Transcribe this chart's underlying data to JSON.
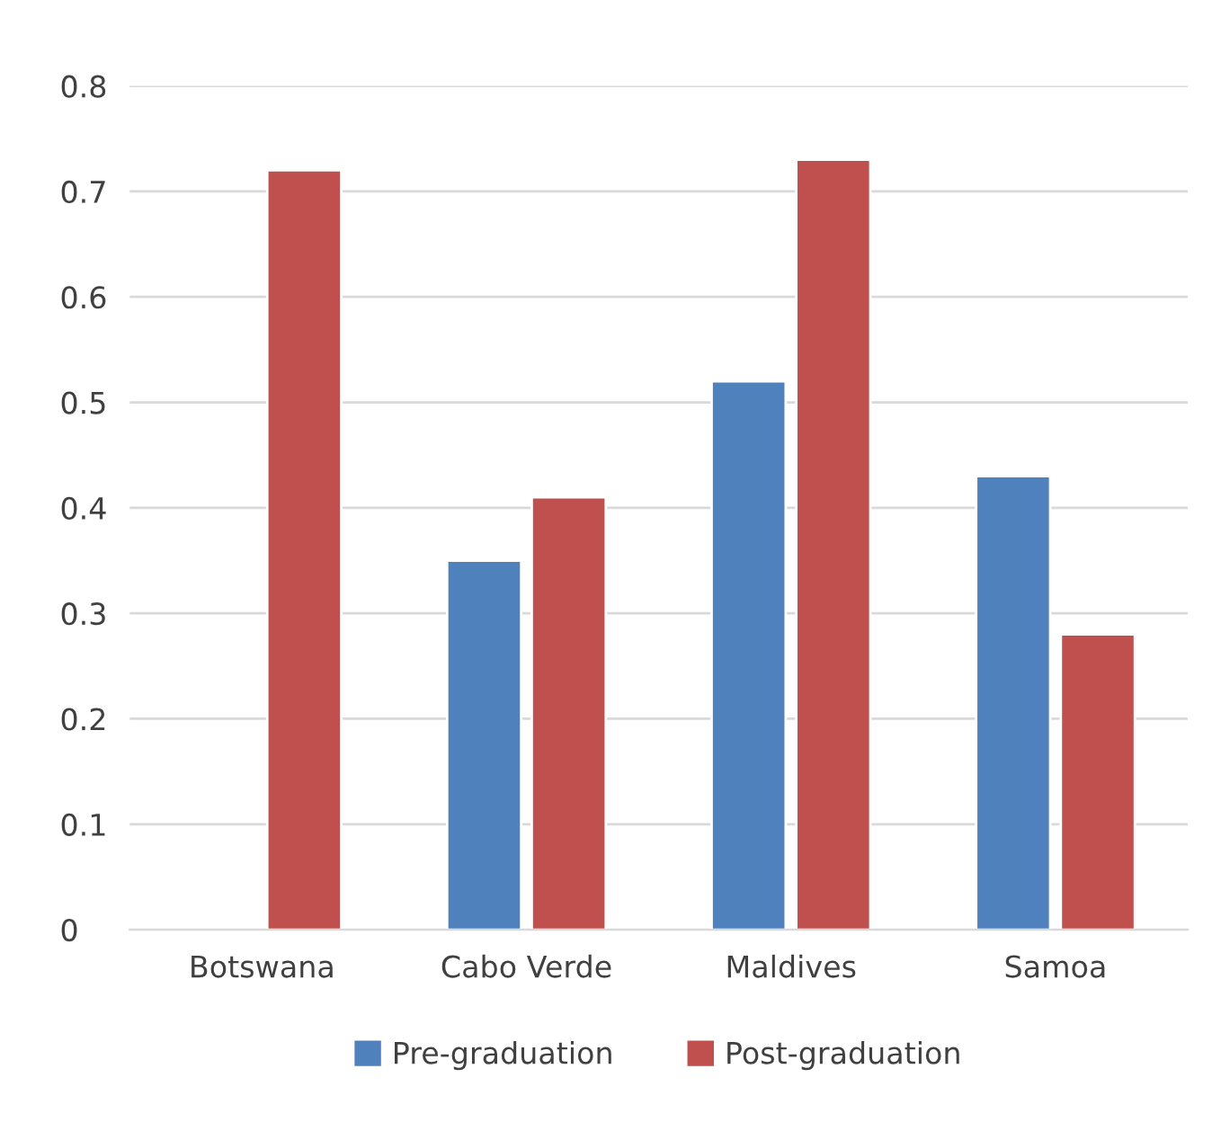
{
  "chart_data": {
    "type": "bar",
    "categories": [
      "Botswana",
      "Cabo Verde",
      "Maldives",
      "Samoa"
    ],
    "series": [
      {
        "name": "Pre-graduation",
        "color": "#4f81bd",
        "values": [
          null,
          0.35,
          0.52,
          0.43
        ]
      },
      {
        "name": "Post-graduation",
        "color": "#c0504d",
        "values": [
          0.72,
          0.41,
          0.73,
          0.28
        ]
      }
    ],
    "ylim": [
      0,
      0.8
    ],
    "yticks": [
      0,
      0.1,
      0.2,
      0.3,
      0.4,
      0.5,
      0.6,
      0.7,
      0.8
    ],
    "grid": "y",
    "legend": "bottom"
  }
}
